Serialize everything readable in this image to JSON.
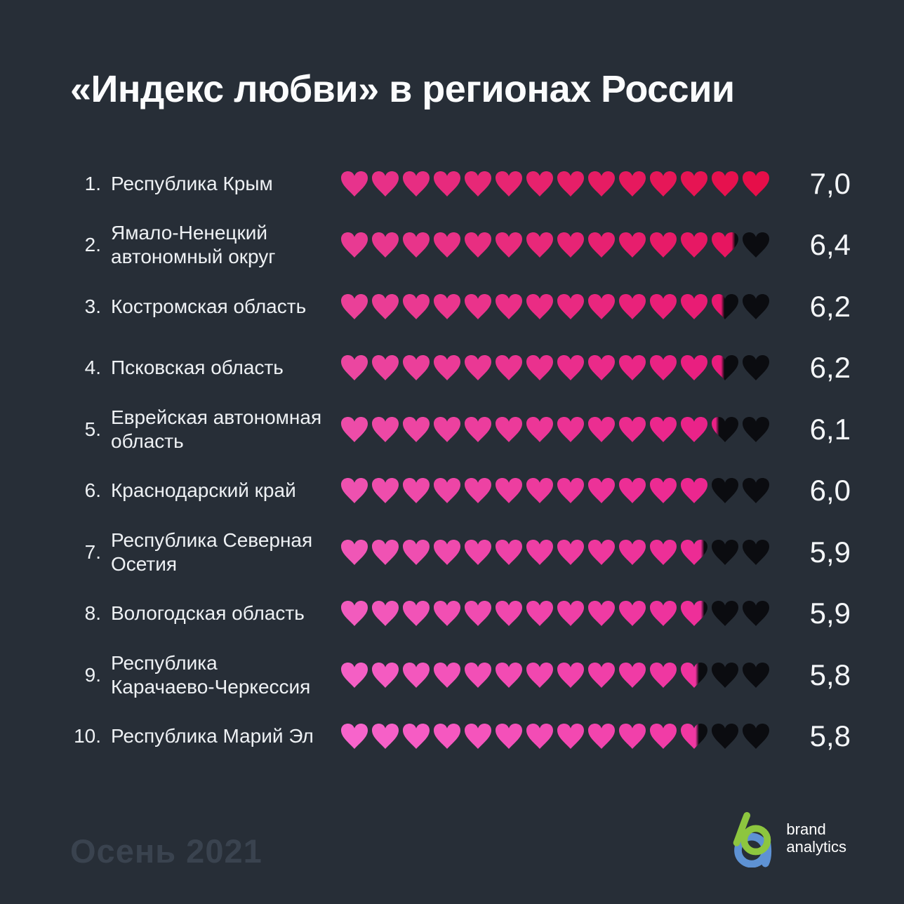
{
  "page": {
    "title": "«Индекс любви» в регионах России",
    "season_label": "Осень 2021",
    "background_color": "#272e37"
  },
  "logo": {
    "line1": "brand",
    "line2": "analytics",
    "b_color": "#8dc63f",
    "a_color": "#5e92d3"
  },
  "hearts": {
    "max_hearts": 14,
    "points_per_heart": 0.5,
    "empty_color": "#0b0c10"
  },
  "rows": [
    {
      "rank_label": "1.",
      "region": "Республика Крым",
      "score": 7.0,
      "score_label": "7,0",
      "color_start": "#e7338c",
      "color_end": "#e60e49"
    },
    {
      "rank_label": "2.",
      "region": "Ямало-Ненецкий\nавтономный округ",
      "score": 6.4,
      "score_label": "6,4",
      "color_start": "#e83a92",
      "color_end": "#e7125c"
    },
    {
      "rank_label": "3.",
      "region": "Костромская область",
      "score": 6.2,
      "score_label": "6,2",
      "color_start": "#ea4098",
      "color_end": "#e9156d"
    },
    {
      "rank_label": "4.",
      "region": "Псковская область",
      "score": 6.2,
      "score_label": "6,2",
      "color_start": "#eb46a0",
      "color_end": "#e9187a"
    },
    {
      "rank_label": "5.",
      "region": "Еврейская автономная\nобласть",
      "score": 6.1,
      "score_label": "6,1",
      "color_start": "#ed4ca8",
      "color_end": "#ea1c83"
    },
    {
      "rank_label": "6.",
      "region": "Краснодарский край",
      "score": 6.0,
      "score_label": "6,0",
      "color_start": "#ee51af",
      "color_end": "#eb1f89"
    },
    {
      "rank_label": "7.",
      "region": "Республика Северная\nОсетия",
      "score": 5.9,
      "score_label": "5,9",
      "color_start": "#f056b6",
      "color_end": "#ec238e"
    },
    {
      "rank_label": "8.",
      "region": "Вологодская область",
      "score": 5.9,
      "score_label": "5,9",
      "color_start": "#f25bbd",
      "color_end": "#ed2793"
    },
    {
      "rank_label": "9.",
      "region": "Республика\nКарачаево-Черкессия",
      "score": 5.8,
      "score_label": "5,8",
      "color_start": "#f45fc4",
      "color_end": "#ee2b97"
    },
    {
      "rank_label": "10.",
      "region": "Республика Марий Эл",
      "score": 5.8,
      "score_label": "5,8",
      "color_start": "#f764cb",
      "color_end": "#ef309b"
    }
  ],
  "chart_data": {
    "type": "bar",
    "variant": "pictograph-hearts",
    "title": "«Индекс любви» в регионах России",
    "categories": [
      "Республика Крым",
      "Ямало-Ненецкий автономный округ",
      "Костромская область",
      "Псковская область",
      "Еврейская автономная область",
      "Краснодарский край",
      "Республика Северная Осетия",
      "Вологодская область",
      "Республика Карачаево-Черкессия",
      "Республика Марий Эл"
    ],
    "values": [
      7.0,
      6.4,
      6.2,
      6.2,
      6.1,
      6.0,
      5.9,
      5.9,
      5.8,
      5.8
    ],
    "value_labels": [
      "7,0",
      "6,4",
      "6,2",
      "6,2",
      "6,1",
      "6,0",
      "5,9",
      "5,9",
      "5,8",
      "5,8"
    ],
    "xlim": [
      0,
      7.0
    ],
    "symbol": "heart",
    "symbols_per_row": 14,
    "units_per_symbol": 0.5,
    "legend_position": "none",
    "grid": false,
    "annotation": "Осень 2021"
  }
}
